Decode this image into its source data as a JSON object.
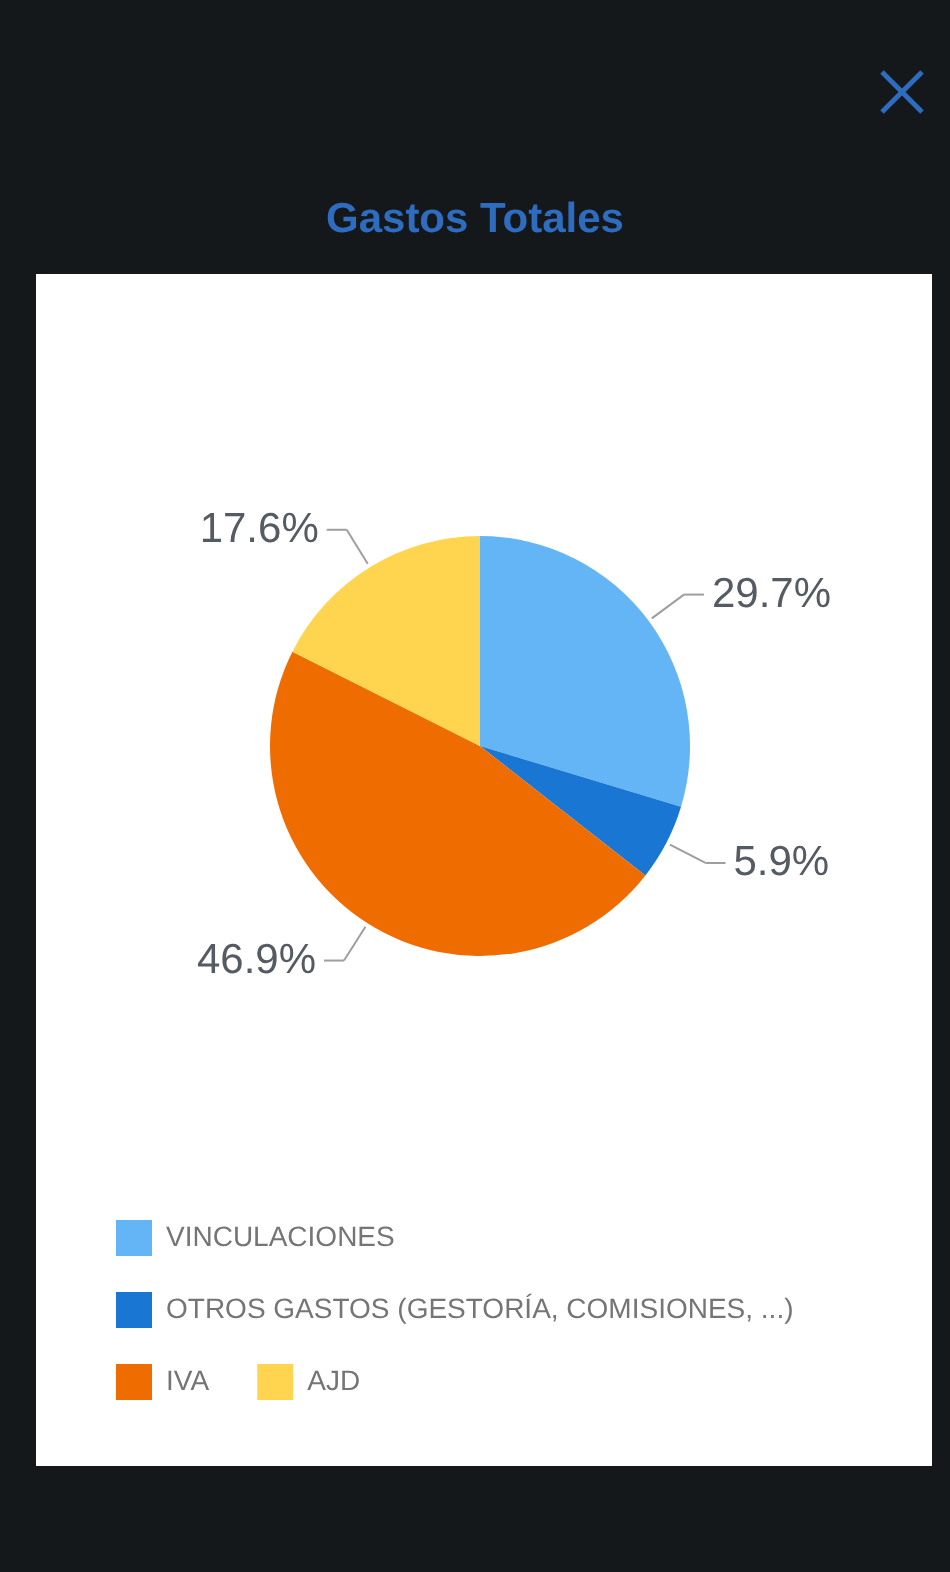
{
  "chart_data": {
    "type": "pie",
    "title": "Gastos Totales",
    "categories": [
      "VINCULACIONES",
      "OTROS GASTOS (GESTORÍA, COMISIONES, ...)",
      "IVA",
      "AJD"
    ],
    "values": [
      29.7,
      5.9,
      46.9,
      17.6
    ],
    "value_labels": [
      "29.7%",
      "5.9%",
      "46.9%",
      "17.6%"
    ],
    "colors": [
      "#64b5f6",
      "#1976d2",
      "#ef6c00",
      "#ffd54f"
    ],
    "legend": "bottom"
  }
}
